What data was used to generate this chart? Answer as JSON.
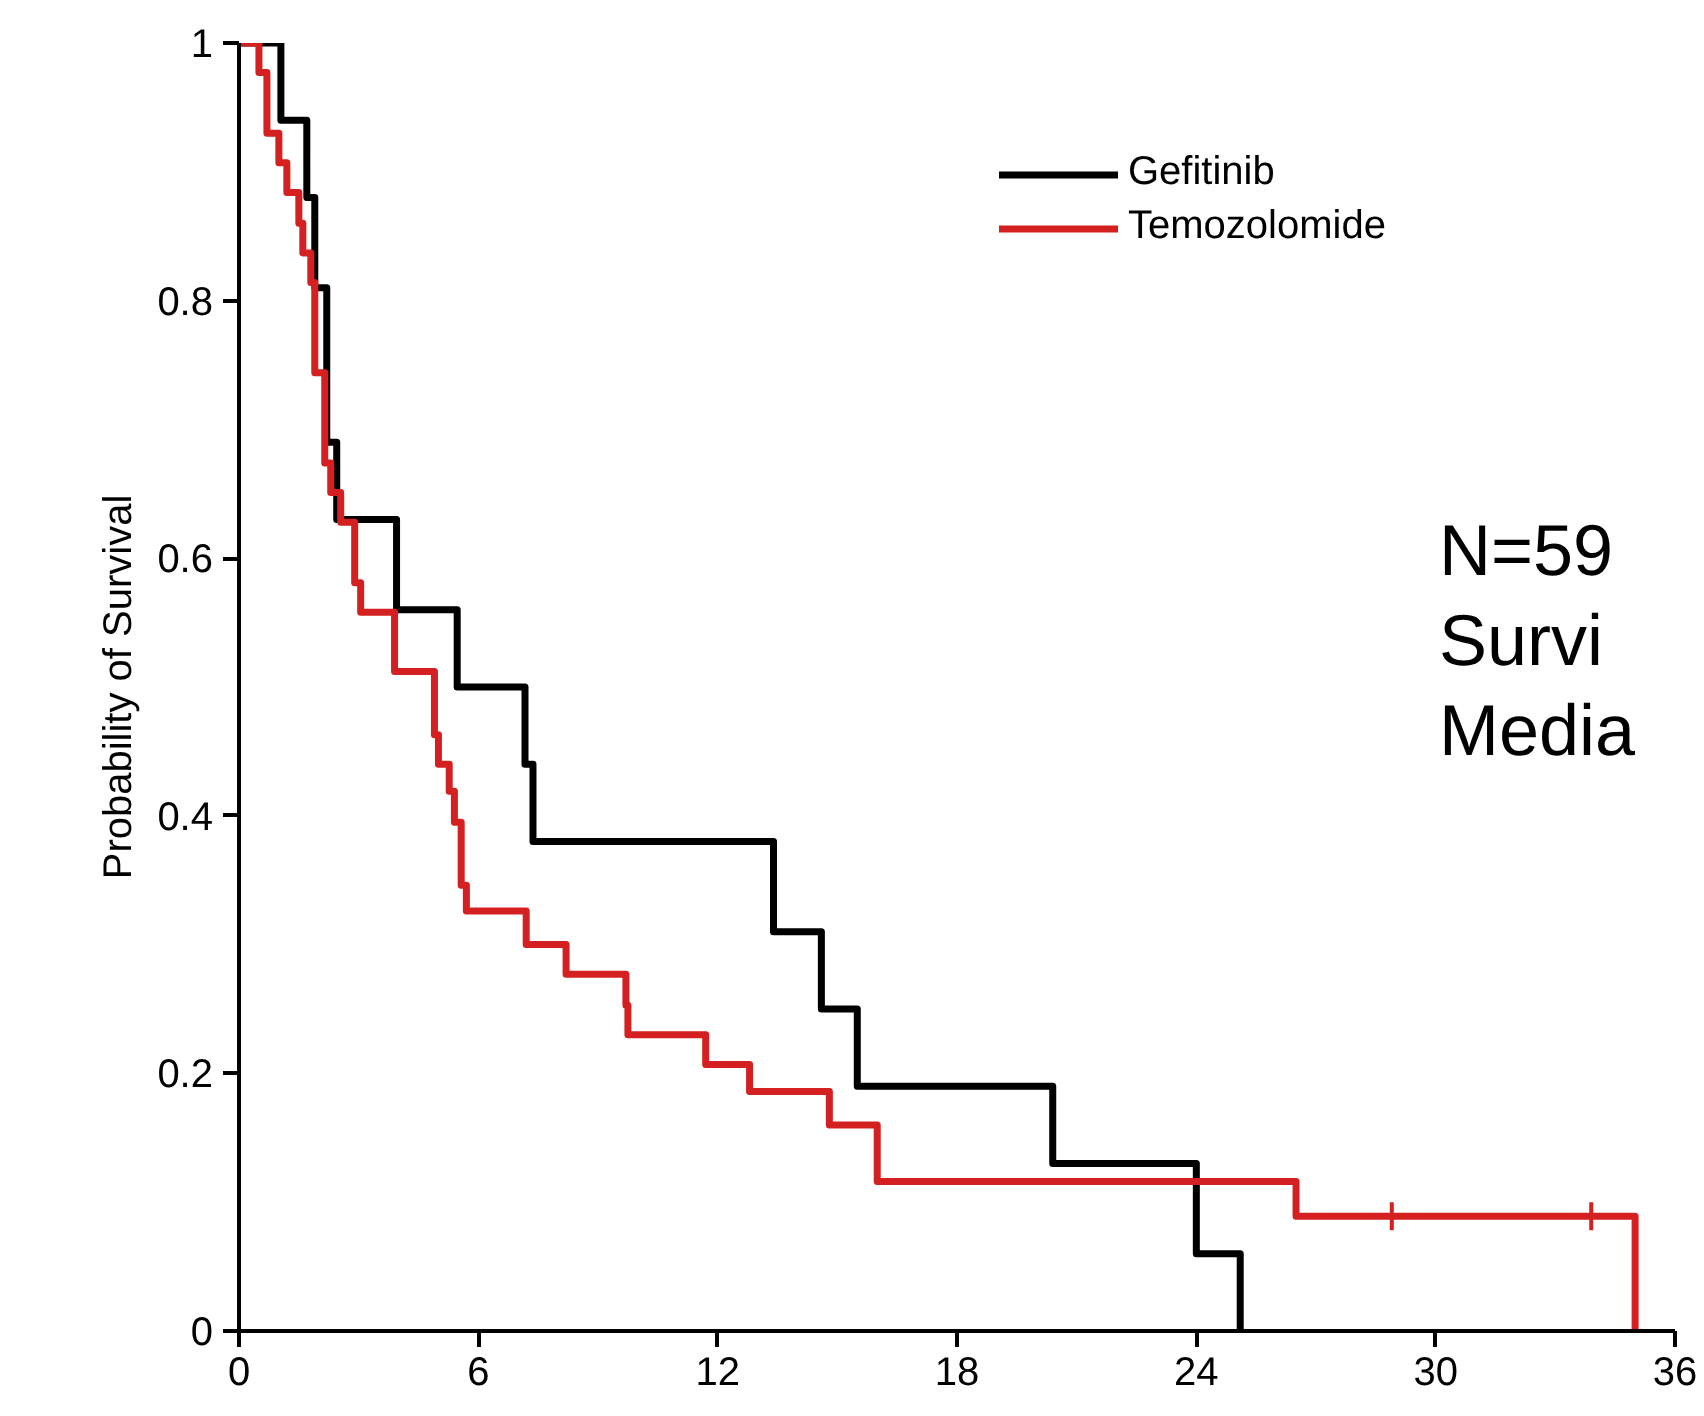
{
  "chart_data": {
    "type": "step",
    "ylabel": "Probability of Survival",
    "xlim": [
      0,
      36
    ],
    "xticks": [
      0,
      6,
      12,
      18,
      24,
      30,
      36
    ],
    "ylim": [
      0,
      1
    ],
    "yticks": [
      0,
      0.2,
      0.4,
      0.6,
      0.8,
      1
    ],
    "grid": false,
    "legend": "top right",
    "line_style": "solid",
    "annotations": [
      "N=59",
      "Survi",
      "Media"
    ],
    "series": [
      {
        "name": "Gefitinib",
        "color": "#000000",
        "x": [
          0,
          1.05,
          1.7,
          1.9,
          2.2,
          2.45,
          3.95,
          5.47,
          7.17,
          7.37,
          13.4,
          14.6,
          15.5,
          20.4,
          24.0,
          25.1
        ],
        "values": [
          1,
          0.94,
          0.88,
          0.81,
          0.69,
          0.63,
          0.56,
          0.5,
          0.44,
          0.38,
          0.31,
          0.25,
          0.19,
          0.13,
          0.06,
          0
        ]
      },
      {
        "name": "Temozolomide",
        "color": "#d42020",
        "x": [
          0,
          0.5,
          0.7,
          1.0,
          1.2,
          1.5,
          1.6,
          1.8,
          1.9,
          2.15,
          2.3,
          2.55,
          2.9,
          3.05,
          3.9,
          4.9,
          5.0,
          5.27,
          5.4,
          5.57,
          5.7,
          7.2,
          8.2,
          9.7,
          9.75,
          11.7,
          12.8,
          14.8,
          16.0,
          26.5,
          35.0
        ],
        "values": [
          1,
          0.977,
          0.93,
          0.907,
          0.884,
          0.86,
          0.837,
          0.814,
          0.744,
          0.674,
          0.651,
          0.628,
          0.581,
          0.558,
          0.512,
          0.463,
          0.44,
          0.419,
          0.395,
          0.346,
          0.326,
          0.3,
          0.277,
          0.253,
          0.23,
          0.207,
          0.186,
          0.16,
          0.116,
          0.089,
          0
        ]
      },
      {
        "type": "scatter",
        "color": "#d42020",
        "marker": "cross",
        "x": [
          28.9,
          33.9
        ],
        "values": [
          0.089,
          0.089
        ]
      }
    ]
  }
}
